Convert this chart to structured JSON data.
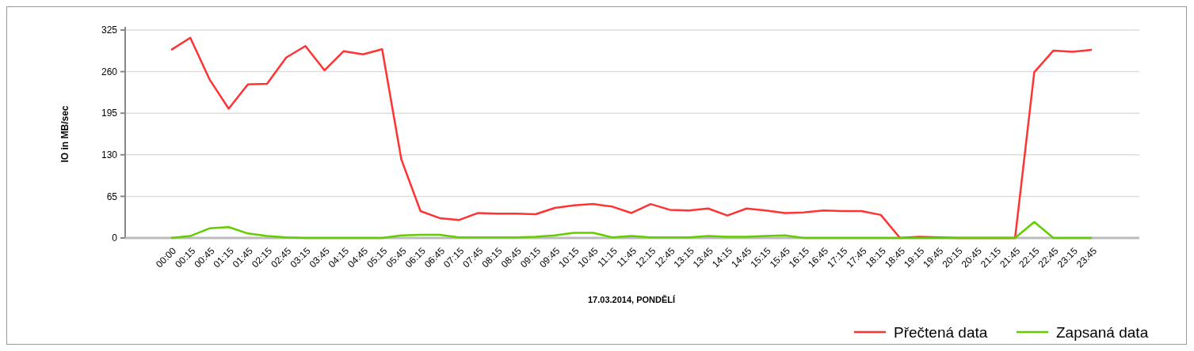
{
  "chart_data": {
    "type": "line",
    "xlabel": "17.03.2014, PONDĚLÍ",
    "ylabel": "IO in MB/sec",
    "categories": [
      "00:00",
      "00:15",
      "00:45",
      "01:15",
      "01:45",
      "02:15",
      "02:45",
      "03:15",
      "03:45",
      "04:15",
      "04:45",
      "05:15",
      "05:45",
      "06:15",
      "06:45",
      "07:15",
      "07:45",
      "08:15",
      "08:45",
      "09:15",
      "09:45",
      "10:15",
      "10:45",
      "11:15",
      "11:45",
      "12:15",
      "12:45",
      "13:15",
      "13:45",
      "14:15",
      "14:45",
      "15:15",
      "15:45",
      "16:15",
      "16:45",
      "17:15",
      "17:45",
      "18:15",
      "18:45",
      "19:15",
      "19:45",
      "20:15",
      "20:45",
      "21:15",
      "21:45",
      "22:15",
      "22:45",
      "23:15",
      "23:45"
    ],
    "series": [
      {
        "name": "Přečtená data",
        "color": "#ff3333",
        "values": [
          294,
          313,
          248,
          202,
          240,
          241,
          282,
          300,
          262,
          292,
          287,
          295,
          123,
          42,
          31,
          28,
          39,
          38,
          38,
          37,
          47,
          51,
          53,
          49,
          39,
          53,
          44,
          43,
          46,
          35,
          46,
          43,
          39,
          40,
          43,
          42,
          42,
          36,
          0,
          2,
          1,
          0,
          0,
          0,
          0,
          259,
          293,
          291,
          294
        ]
      },
      {
        "name": "Zapsaná data",
        "color": "#66cc00",
        "values": [
          0,
          3,
          15,
          17,
          7,
          3,
          1,
          0,
          0,
          0,
          0,
          0,
          4,
          5,
          5,
          1,
          1,
          1,
          1,
          2,
          4,
          8,
          8,
          1,
          3,
          1,
          1,
          1,
          3,
          2,
          2,
          3,
          4,
          0,
          0,
          0,
          0,
          0,
          0,
          0,
          0,
          0,
          0,
          0,
          0,
          25,
          0,
          0,
          0
        ]
      }
    ],
    "ylim": [
      0,
      325
    ],
    "yticks": [
      0,
      65,
      130,
      195,
      260,
      325
    ],
    "grid": "y",
    "legend": "bottom right",
    "marker": "none",
    "line_style": "solid"
  }
}
